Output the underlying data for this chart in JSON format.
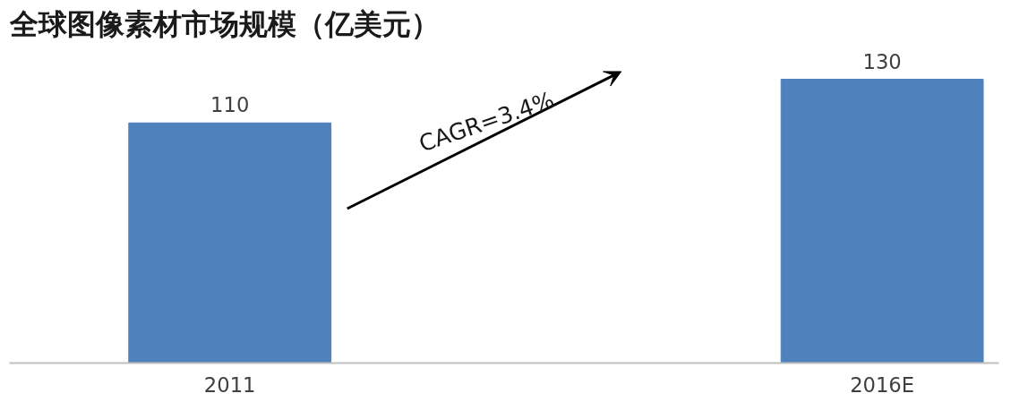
{
  "chart_data": {
    "type": "bar",
    "title": "全球图像素材市场规模（亿美元）",
    "categories": [
      "2011",
      "2016E"
    ],
    "values": [
      110,
      130
    ],
    "color": "#4f81bd",
    "data_labels": true,
    "grid": false,
    "tick_labels": "x",
    "annotations": [
      "CAGR=3.4%"
    ]
  }
}
